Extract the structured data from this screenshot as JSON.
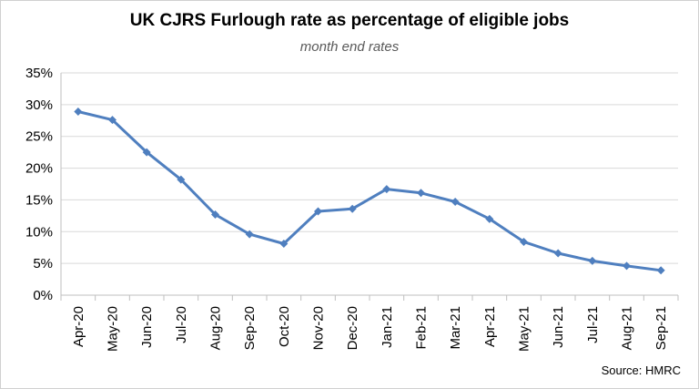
{
  "chart_data": {
    "type": "line",
    "title": "UK CJRS Furlough rate as percentage of eligible jobs",
    "subtitle": "month end rates",
    "source": "Source: HMRC",
    "categories": [
      "Apr-20",
      "May-20",
      "Jun-20",
      "Jul-20",
      "Aug-20",
      "Sep-20",
      "Oct-20",
      "Nov-20",
      "Dec-20",
      "Jan-21",
      "Feb-21",
      "Mar-21",
      "Apr-21",
      "May-21",
      "Jun-21",
      "Jul-21",
      "Aug-21",
      "Sep-21"
    ],
    "values": [
      0.289,
      0.276,
      0.225,
      0.182,
      0.127,
      0.096,
      0.081,
      0.132,
      0.136,
      0.167,
      0.161,
      0.147,
      0.12,
      0.084,
      0.066,
      0.054,
      0.046,
      0.039
    ],
    "ylim": [
      0,
      0.35
    ],
    "yticks": [
      0,
      0.05,
      0.1,
      0.15,
      0.2,
      0.25,
      0.3,
      0.35
    ],
    "ytick_labels": [
      "0%",
      "5%",
      "10%",
      "15%",
      "20%",
      "25%",
      "30%",
      "35%"
    ],
    "grid": true,
    "legend": "none",
    "series_color": "#4f7fbf"
  }
}
